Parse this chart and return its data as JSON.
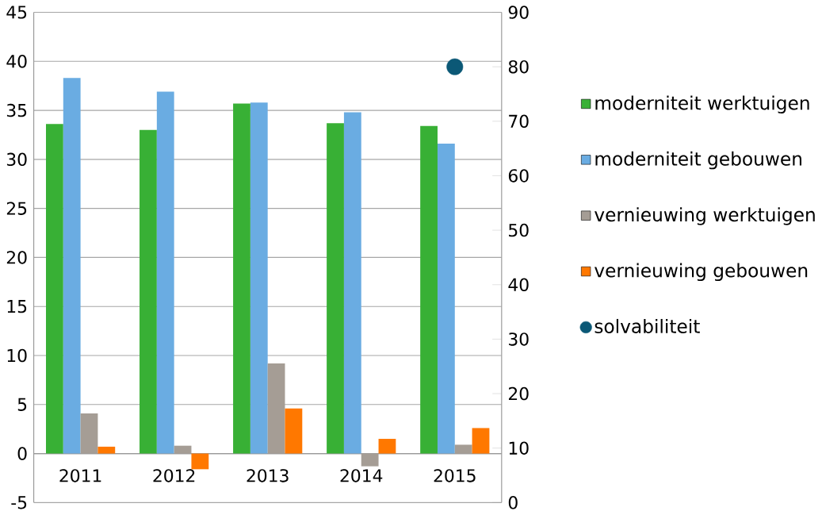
{
  "chart_data": {
    "type": "bar",
    "categories": [
      "2011",
      "2012",
      "2013",
      "2014",
      "2015"
    ],
    "series": [
      {
        "name": "moderniteit werktuigen",
        "color": "#38b035",
        "values": [
          33.6,
          33.0,
          35.7,
          33.7,
          33.4
        ]
      },
      {
        "name": "moderniteit gebouwen",
        "color": "#6aace2",
        "values": [
          38.3,
          36.9,
          35.8,
          34.8,
          31.6
        ]
      },
      {
        "name": "vernieuwing werktuigen",
        "color": "#a59d95",
        "values": [
          4.1,
          0.8,
          9.2,
          -1.3,
          0.9
        ]
      },
      {
        "name": "vernieuwing gebouwen",
        "color": "#ff7800",
        "values": [
          0.7,
          -1.6,
          4.6,
          1.5,
          2.6
        ]
      },
      {
        "name": "solvabiliteit",
        "color": "#0b5876",
        "type": "scatter",
        "axis": "y2",
        "marker": "circle",
        "values": [
          null,
          null,
          null,
          null,
          80
        ]
      }
    ],
    "ylim": [
      -5,
      45
    ],
    "yticks": [
      -5,
      0,
      5,
      10,
      15,
      20,
      25,
      30,
      35,
      40,
      45
    ],
    "y2lim": [
      0,
      90
    ],
    "y2ticks": [
      0,
      10,
      20,
      30,
      40,
      50,
      60,
      70,
      80,
      90
    ],
    "grid": "y",
    "legend": "right"
  }
}
